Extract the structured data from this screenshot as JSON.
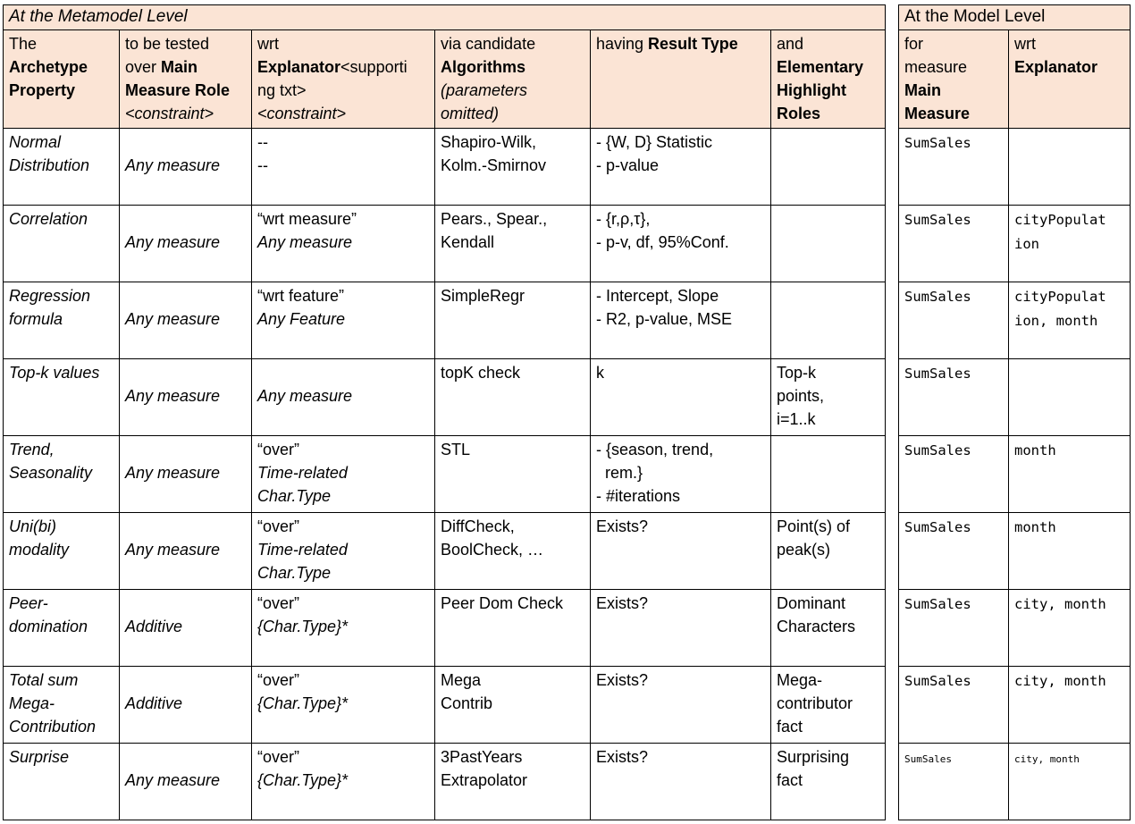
{
  "colors": {
    "header_bg": "#fbe4d5",
    "border": "#000000",
    "page_bg": "#ffffff"
  },
  "metamodel_table": {
    "title": "At the Metamodel Level",
    "title_italic": true,
    "header": [
      [
        [
          [
            "The",
            ""
          ]
        ],
        [
          [
            "Archetype",
            "b"
          ]
        ],
        [
          [
            "Property",
            "b"
          ]
        ]
      ],
      [
        [
          [
            "to be tested",
            ""
          ]
        ],
        [
          [
            "over ",
            ""
          ],
          [
            "Main",
            "b"
          ]
        ],
        [
          [
            "Measure Role",
            "b"
          ]
        ],
        [
          [
            "<constraint>",
            "i"
          ]
        ]
      ],
      [
        [
          [
            "wrt",
            ""
          ]
        ],
        [
          [
            "Explanator",
            "b"
          ],
          [
            "<supporti",
            ""
          ]
        ],
        [
          [
            "ng txt>",
            ""
          ]
        ],
        [
          [
            "<constraint>",
            "i"
          ]
        ]
      ],
      [
        [
          [
            "via candidate",
            ""
          ]
        ],
        [
          [
            "Algorithms",
            "b"
          ]
        ],
        [
          [
            "(parameters",
            "i"
          ]
        ],
        [
          [
            "omitted)",
            "i"
          ]
        ]
      ],
      [
        [
          [
            "having ",
            ""
          ],
          [
            "Result Type",
            "b"
          ]
        ]
      ],
      [
        [
          [
            "and",
            ""
          ]
        ],
        [
          [
            "Elementary",
            "b"
          ]
        ],
        [
          [
            "Highlight",
            "b"
          ]
        ],
        [
          [
            "Roles",
            "b"
          ]
        ]
      ]
    ],
    "rows": [
      [
        [
          [
            [
              "Normal",
              "i"
            ]
          ],
          [
            [
              "Distribution",
              "i"
            ]
          ]
        ],
        [
          [
            [
              "",
              ""
            ]
          ],
          [
            [
              "Any measure",
              "i"
            ]
          ]
        ],
        [
          [
            [
              "--",
              ""
            ]
          ],
          [
            [
              "--",
              ""
            ]
          ]
        ],
        [
          [
            [
              "Shapiro-Wilk,",
              ""
            ]
          ],
          [
            [
              "Kolm.-Smirnov",
              ""
            ]
          ]
        ],
        [
          [
            [
              "- {W, D} Statistic",
              ""
            ]
          ],
          [
            [
              "- p-value",
              ""
            ]
          ]
        ],
        []
      ],
      [
        [
          [
            [
              "Correlation",
              "i"
            ]
          ]
        ],
        [
          [
            [
              "",
              ""
            ]
          ],
          [
            [
              "Any measure",
              "i"
            ]
          ]
        ],
        [
          [
            [
              "“wrt measure”",
              ""
            ]
          ],
          [
            [
              "Any measure",
              "i"
            ]
          ]
        ],
        [
          [
            [
              "Pears., Spear.,",
              ""
            ]
          ],
          [
            [
              "Kendall",
              ""
            ]
          ]
        ],
        [
          [
            [
              "- {r,ρ,τ},",
              ""
            ]
          ],
          [
            [
              "- p-v, df, 95%Conf.",
              ""
            ]
          ]
        ],
        []
      ],
      [
        [
          [
            [
              "Regression",
              "i"
            ]
          ],
          [
            [
              "formula",
              "i"
            ]
          ]
        ],
        [
          [
            [
              "",
              ""
            ]
          ],
          [
            [
              "Any measure",
              "i"
            ]
          ]
        ],
        [
          [
            [
              "“wrt feature”",
              ""
            ]
          ],
          [
            [
              "Any Feature",
              "i"
            ]
          ]
        ],
        [
          [
            [
              "SimpleRegr",
              ""
            ]
          ]
        ],
        [
          [
            [
              "- Intercept, Slope",
              ""
            ]
          ],
          [
            [
              "- R2, p-value, MSE",
              ""
            ]
          ]
        ],
        []
      ],
      [
        [
          [
            [
              "Top-k values",
              "i"
            ]
          ]
        ],
        [
          [
            [
              "",
              ""
            ]
          ],
          [
            [
              "Any measure",
              "i"
            ]
          ]
        ],
        [
          [
            [
              "",
              ""
            ]
          ],
          [
            [
              "Any measure",
              "i"
            ]
          ]
        ],
        [
          [
            [
              "topK check",
              ""
            ]
          ]
        ],
        [
          [
            [
              "k",
              ""
            ]
          ]
        ],
        [
          [
            [
              "Top-k",
              ""
            ]
          ],
          [
            [
              "points,",
              ""
            ]
          ],
          [
            [
              "i=1..k",
              ""
            ]
          ]
        ]
      ],
      [
        [
          [
            [
              "Trend,",
              "i"
            ]
          ],
          [
            [
              "Seasonality",
              "i"
            ]
          ]
        ],
        [
          [
            [
              "",
              ""
            ]
          ],
          [
            [
              "Any measure",
              "i"
            ]
          ]
        ],
        [
          [
            [
              "“over”",
              ""
            ]
          ],
          [
            [
              "Time-related",
              "i"
            ]
          ],
          [
            [
              "Char.Type",
              "i"
            ]
          ]
        ],
        [
          [
            [
              "STL",
              ""
            ]
          ]
        ],
        [
          [
            [
              "- {season, trend,",
              ""
            ]
          ],
          [
            [
              "  rem.}",
              ""
            ]
          ],
          [
            [
              "- #iterations",
              ""
            ]
          ]
        ],
        []
      ],
      [
        [
          [
            [
              "Uni(bi)",
              "i"
            ]
          ],
          [
            [
              "modality",
              "i"
            ]
          ]
        ],
        [
          [
            [
              "",
              ""
            ]
          ],
          [
            [
              "Any measure",
              "i"
            ]
          ]
        ],
        [
          [
            [
              "“over”",
              ""
            ]
          ],
          [
            [
              "Time-related",
              "i"
            ]
          ],
          [
            [
              "Char.Type",
              "i"
            ]
          ]
        ],
        [
          [
            [
              "DiffCheck,",
              ""
            ]
          ],
          [
            [
              "BoolCheck, …",
              ""
            ]
          ]
        ],
        [
          [
            [
              "Exists?",
              ""
            ]
          ]
        ],
        [
          [
            [
              "Point(s) of",
              ""
            ]
          ],
          [
            [
              "peak(s)",
              ""
            ]
          ]
        ]
      ],
      [
        [
          [
            [
              "Peer-",
              "i"
            ]
          ],
          [
            [
              "domination",
              "i"
            ]
          ]
        ],
        [
          [
            [
              "",
              ""
            ]
          ],
          [
            [
              "Additive",
              "i"
            ]
          ]
        ],
        [
          [
            [
              "“over”",
              ""
            ]
          ],
          [
            [
              "{Char.Type}*",
              "i"
            ]
          ]
        ],
        [
          [
            [
              "Peer Dom Check",
              ""
            ]
          ]
        ],
        [
          [
            [
              "Exists?",
              ""
            ]
          ]
        ],
        [
          [
            [
              "Dominant",
              ""
            ]
          ],
          [
            [
              "Characters",
              ""
            ]
          ]
        ]
      ],
      [
        [
          [
            [
              "Total sum",
              "i"
            ]
          ],
          [
            [
              "Mega-",
              "i"
            ]
          ],
          [
            [
              "Contribution",
              "i"
            ]
          ]
        ],
        [
          [
            [
              "",
              ""
            ]
          ],
          [
            [
              "Additive",
              "i"
            ]
          ]
        ],
        [
          [
            [
              "“over”",
              ""
            ]
          ],
          [
            [
              "{Char.Type}*",
              "i"
            ]
          ]
        ],
        [
          [
            [
              "Mega",
              ""
            ]
          ],
          [
            [
              "Contrib",
              ""
            ]
          ]
        ],
        [
          [
            [
              "Exists?",
              ""
            ]
          ]
        ],
        [
          [
            [
              "Mega-",
              ""
            ]
          ],
          [
            [
              "contributor",
              ""
            ]
          ],
          [
            [
              "fact",
              ""
            ]
          ]
        ]
      ],
      [
        [
          [
            [
              "Surprise",
              "i"
            ]
          ]
        ],
        [
          [
            [
              "",
              ""
            ]
          ],
          [
            [
              "Any measure",
              "i"
            ]
          ]
        ],
        [
          [
            [
              "“over”",
              ""
            ]
          ],
          [
            [
              "{Char.Type}*",
              "i"
            ]
          ]
        ],
        [
          [
            [
              "3PastYears",
              ""
            ]
          ],
          [
            [
              "Extrapolator",
              ""
            ]
          ]
        ],
        [
          [
            [
              "Exists?",
              ""
            ]
          ]
        ],
        [
          [
            [
              "Surprising",
              ""
            ]
          ],
          [
            [
              "fact",
              ""
            ]
          ]
        ]
      ]
    ]
  },
  "model_table": {
    "title": "At the Model Level",
    "title_italic": false,
    "header": [
      [
        [
          [
            "for",
            ""
          ]
        ],
        [
          [
            "measure",
            ""
          ]
        ],
        [
          [
            "Main",
            "b"
          ]
        ],
        [
          [
            "Measure",
            "b"
          ]
        ]
      ],
      [
        [
          [
            "wrt",
            ""
          ]
        ],
        [
          [
            "Explanator",
            "b"
          ]
        ]
      ]
    ],
    "rows": [
      [
        [
          [
            [
              "SumSales",
              "m"
            ]
          ]
        ],
        []
      ],
      [
        [
          [
            [
              "SumSales",
              "m"
            ]
          ]
        ],
        [
          [
            [
              "cityPopulat",
              "m"
            ]
          ],
          [
            [
              "ion",
              "m"
            ]
          ]
        ]
      ],
      [
        [
          [
            [
              "SumSales",
              "m"
            ]
          ]
        ],
        [
          [
            [
              "cityPopulat",
              "m"
            ]
          ],
          [
            [
              "ion, month",
              "m"
            ]
          ]
        ]
      ],
      [
        [
          [
            [
              "SumSales",
              "m"
            ]
          ]
        ],
        []
      ],
      [
        [
          [
            [
              "SumSales",
              "m"
            ]
          ]
        ],
        [
          [
            [
              "month",
              "m"
            ]
          ]
        ]
      ],
      [
        [
          [
            [
              "SumSales",
              "m"
            ]
          ]
        ],
        [
          [
            [
              "month",
              "m"
            ]
          ]
        ]
      ],
      [
        [
          [
            [
              "SumSales",
              "m"
            ]
          ]
        ],
        [
          [
            [
              "city, month",
              "m"
            ]
          ]
        ]
      ],
      [
        [
          [
            [
              "SumSales",
              "m"
            ]
          ]
        ],
        [
          [
            [
              "city, month",
              "m"
            ]
          ]
        ]
      ],
      [
        [
          [
            [
              "SumSales",
              "ms"
            ]
          ]
        ],
        [
          [
            [
              "city, month",
              "ms"
            ]
          ]
        ]
      ]
    ]
  }
}
